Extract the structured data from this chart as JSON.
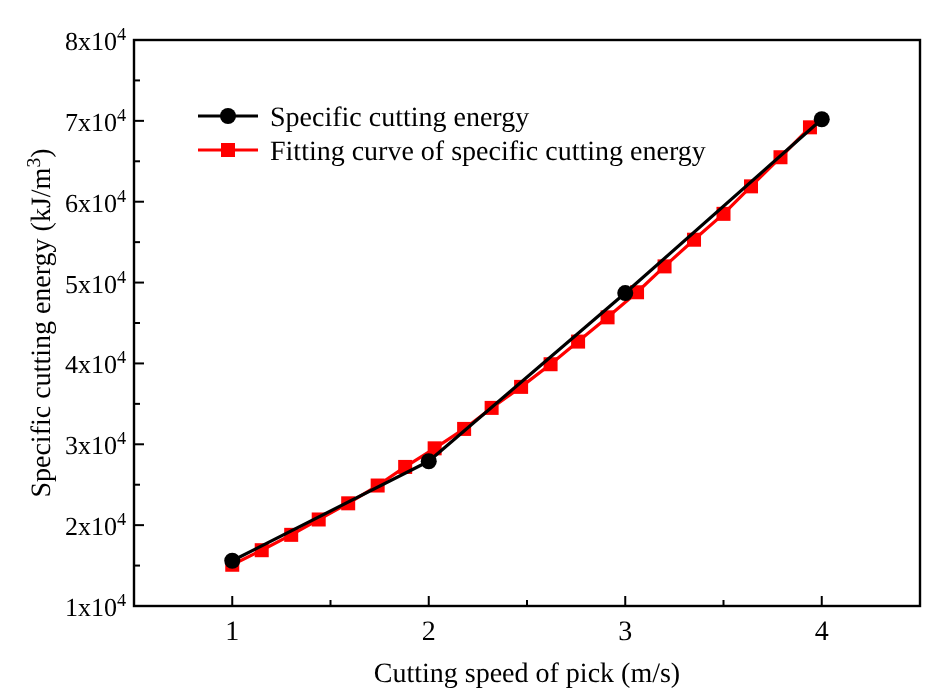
{
  "chart_data": {
    "type": "line",
    "xlabel": "Cutting speed of pick (m/s)",
    "ylabel": "Specific cutting energy (kJ/m$^{3}$)",
    "xlim": [
      0.5,
      4.5
    ],
    "xticks": [
      1,
      {
        "value": 1.5,
        "label": null
      },
      2,
      {
        "value": 2.5,
        "label": null
      },
      3,
      {
        "value": 3.5,
        "label": null
      },
      4
    ],
    "ylim": [
      10000,
      80000
    ],
    "yticks": [
      {
        "value": 10000,
        "label": "1x10$^{4}$"
      },
      {
        "value": 15000,
        "label": null
      },
      {
        "value": 20000,
        "label": "2x10$^{4}$"
      },
      {
        "value": 25000,
        "label": null
      },
      {
        "value": 30000,
        "label": "3x10$^{4}$"
      },
      {
        "value": 35000,
        "label": null
      },
      {
        "value": 40000,
        "label": "4x10$^{4}$"
      },
      {
        "value": 45000,
        "label": null
      },
      {
        "value": 50000,
        "label": "5x10$^{4}$"
      },
      {
        "value": 55000,
        "label": null
      },
      {
        "value": 60000,
        "label": "6x10$^{4}$"
      },
      {
        "value": 65000,
        "label": null
      },
      {
        "value": 70000,
        "label": "7x10$^{4}$"
      },
      {
        "value": 75000,
        "label": null
      },
      {
        "value": 80000,
        "label": "8x10$^{4}$"
      }
    ],
    "grid": false,
    "legend": "top left",
    "series": [
      {
        "name": "Specific cutting energy",
        "color": "#000000",
        "marker": "circle",
        "x": [
          1,
          2,
          3,
          4
        ],
        "values": [
          15600,
          27900,
          48700,
          70200
        ]
      },
      {
        "name": "Fitting curve of specific cutting energy",
        "color": "#ff0000",
        "marker": "square",
        "x": [
          1.0,
          1.15,
          1.3,
          1.44,
          1.59,
          1.74,
          1.88,
          2.03,
          2.18,
          2.32,
          2.47,
          2.62,
          2.76,
          2.91,
          3.06,
          3.2,
          3.35,
          3.5,
          3.64,
          3.79,
          3.94
        ],
        "values": [
          15100,
          16900,
          18800,
          20700,
          22700,
          24900,
          27200,
          29500,
          31900,
          34500,
          37100,
          39900,
          42700,
          45700,
          48800,
          52000,
          55300,
          58500,
          61900,
          65500,
          69200
        ]
      }
    ]
  }
}
